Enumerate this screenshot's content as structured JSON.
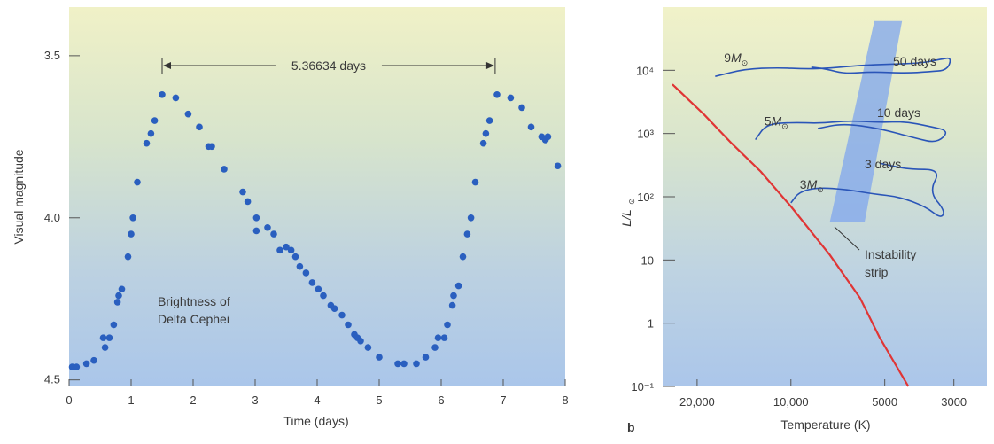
{
  "chart_data": [
    {
      "type": "scatter",
      "title": "",
      "xlabel": "Time (days)",
      "ylabel": "Visual magnitude",
      "xlim": [
        0,
        8
      ],
      "ylim": [
        4.52,
        3.35
      ],
      "y_inverted": true,
      "grid": false,
      "xticks": [
        "0",
        "1",
        "2",
        "3",
        "4",
        "5",
        "6",
        "7",
        "8"
      ],
      "yticks": [
        "3.5",
        "4.0",
        "4.5"
      ],
      "annotations": {
        "period_label": "5.36634 days",
        "period_start": 1.5,
        "period_end": 6.87,
        "caption_line1": "Brightness of",
        "caption_line2": "Delta Cephei"
      },
      "series": [
        {
          "color": "#2a5fbf",
          "points": [
            [
              0.05,
              4.46
            ],
            [
              0.12,
              4.46
            ],
            [
              0.28,
              4.45
            ],
            [
              0.4,
              4.44
            ],
            [
              0.55,
              4.37
            ],
            [
              0.58,
              4.4
            ],
            [
              0.65,
              4.37
            ],
            [
              0.72,
              4.33
            ],
            [
              0.78,
              4.26
            ],
            [
              0.8,
              4.24
            ],
            [
              0.85,
              4.22
            ],
            [
              0.95,
              4.12
            ],
            [
              1.0,
              4.05
            ],
            [
              1.03,
              4.0
            ],
            [
              1.1,
              3.89
            ],
            [
              1.25,
              3.77
            ],
            [
              1.32,
              3.74
            ],
            [
              1.38,
              3.7
            ],
            [
              1.5,
              3.62
            ],
            [
              1.72,
              3.63
            ],
            [
              1.92,
              3.68
            ],
            [
              2.1,
              3.72
            ],
            [
              2.25,
              3.78
            ],
            [
              2.3,
              3.78
            ],
            [
              2.5,
              3.85
            ],
            [
              2.8,
              3.92
            ],
            [
              2.88,
              3.95
            ],
            [
              3.02,
              4.0
            ],
            [
              3.02,
              4.04
            ],
            [
              3.2,
              4.03
            ],
            [
              3.3,
              4.05
            ],
            [
              3.4,
              4.1
            ],
            [
              3.5,
              4.09
            ],
            [
              3.58,
              4.1
            ],
            [
              3.65,
              4.12
            ],
            [
              3.72,
              4.15
            ],
            [
              3.82,
              4.17
            ],
            [
              3.92,
              4.2
            ],
            [
              4.02,
              4.22
            ],
            [
              4.1,
              4.24
            ],
            [
              4.22,
              4.27
            ],
            [
              4.28,
              4.28
            ],
            [
              4.4,
              4.3
            ],
            [
              4.5,
              4.33
            ],
            [
              4.6,
              4.36
            ],
            [
              4.65,
              4.37
            ],
            [
              4.7,
              4.38
            ],
            [
              4.82,
              4.4
            ],
            [
              5.0,
              4.43
            ],
            [
              5.3,
              4.45
            ],
            [
              5.4,
              4.45
            ],
            [
              5.6,
              4.45
            ],
            [
              5.75,
              4.43
            ],
            [
              5.9,
              4.4
            ],
            [
              5.95,
              4.37
            ],
            [
              6.05,
              4.37
            ],
            [
              6.1,
              4.33
            ],
            [
              6.18,
              4.27
            ],
            [
              6.2,
              4.24
            ],
            [
              6.28,
              4.21
            ],
            [
              6.35,
              4.12
            ],
            [
              6.42,
              4.05
            ],
            [
              6.48,
              4.0
            ],
            [
              6.55,
              3.89
            ],
            [
              6.68,
              3.77
            ],
            [
              6.72,
              3.74
            ],
            [
              6.78,
              3.7
            ],
            [
              6.9,
              3.62
            ],
            [
              7.12,
              3.63
            ],
            [
              7.3,
              3.66
            ],
            [
              7.45,
              3.72
            ],
            [
              7.62,
              3.75
            ],
            [
              7.68,
              3.76
            ],
            [
              7.72,
              3.75
            ],
            [
              7.88,
              3.84
            ]
          ]
        }
      ]
    },
    {
      "type": "line",
      "title": "",
      "panel_label": "b",
      "xlabel": "Temperature (K)",
      "ylabel": "L/L",
      "ylabel_sub": "⊙",
      "x_scale": "log",
      "x_reversed": true,
      "y_scale": "log",
      "xlim": [
        25800,
        2350
      ],
      "ylim": [
        0.1,
        100000
      ],
      "xticks": [
        "20,000",
        "10,000",
        "5000",
        "3000"
      ],
      "yticks": [
        "10⁻¹",
        "1",
        "10",
        "10²",
        "10³",
        "10⁴"
      ],
      "main_sequence": {
        "color": "#e03535",
        "points": [
          [
            24000,
            6000
          ],
          [
            19000,
            2000
          ],
          [
            15500,
            700
          ],
          [
            12500,
            250
          ],
          [
            10000,
            70
          ],
          [
            7500,
            12
          ],
          [
            6000,
            2.5
          ],
          [
            5200,
            0.6
          ],
          [
            4200,
            0.1
          ]
        ]
      },
      "tracks": [
        {
          "label": "9M",
          "color": "#2a55b8",
          "points": [
            [
              17500,
              8000
            ],
            [
              14000,
              10500
            ],
            [
              11000,
              11000
            ],
            [
              9000,
              10500
            ],
            [
              7500,
              10800
            ],
            [
              6000,
              12000
            ],
            [
              4800,
              12500
            ],
            [
              3800,
              13000
            ],
            [
              3300,
              15000
            ],
            [
              3050,
              16000
            ],
            [
              3150,
              10000
            ],
            [
              3600,
              9500
            ],
            [
              4300,
              9000
            ],
            [
              5500,
              9500
            ],
            [
              6700,
              8800
            ],
            [
              7700,
              10500
            ],
            [
              8600,
              11200
            ]
          ]
        },
        {
          "label": "5M",
          "color": "#2a55b8",
          "points": [
            [
              13000,
              800
            ],
            [
              12000,
              1400
            ],
            [
              10000,
              1500
            ],
            [
              8000,
              1450
            ],
            [
              6500,
              1600
            ],
            [
              5200,
              1500
            ],
            [
              4300,
              1550
            ],
            [
              3600,
              1300
            ],
            [
              3100,
              1100
            ],
            [
              3400,
              700
            ],
            [
              4000,
              850
            ],
            [
              5200,
              1200
            ],
            [
              6800,
              1450
            ],
            [
              8200,
              1200
            ]
          ]
        },
        {
          "label": "3M",
          "color": "#2a55b8",
          "points": [
            [
              10000,
              80
            ],
            [
              9400,
              120
            ],
            [
              8200,
              140
            ],
            [
              6600,
              130
            ],
            [
              5400,
              110
            ],
            [
              4500,
              100
            ],
            [
              3700,
              70
            ],
            [
              3300,
              45
            ],
            [
              3200,
              60
            ],
            [
              3600,
              120
            ],
            [
              3300,
              270
            ],
            [
              4200,
              270
            ],
            [
              5200,
              340
            ]
          ]
        }
      ],
      "instability_strip": {
        "color": "#7fa5ee",
        "corners": [
          [
            5400,
            60000
          ],
          [
            4400,
            60000
          ],
          [
            5800,
            40
          ],
          [
            7500,
            40
          ]
        ]
      },
      "period_labels": [
        "50 days",
        "10 days",
        "3 days"
      ],
      "annotation": {
        "line1": "Instability",
        "line2": "strip"
      }
    }
  ]
}
